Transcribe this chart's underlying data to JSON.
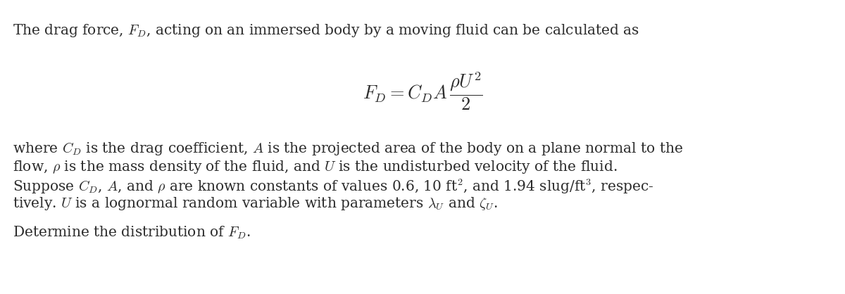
{
  "figsize": [
    12.0,
    4.18
  ],
  "dpi": 100,
  "bg_color": "#ffffff",
  "text_color": "#2b2b2b",
  "font_size_body": 14.5,
  "font_size_formula": 19,
  "line1": "The drag force, $F_D$, acting on an immersed body by a moving fluid can be calculated as",
  "formula": "$F_D = C_D A\\,\\dfrac{\\rho U^2}{2}$",
  "line3": "where $C_D$ is the drag coefficient, $A$ is the projected area of the body on a plane normal to the",
  "line4": "flow, $\\rho$ is the mass density of the fluid, and $U$ is the undisturbed velocity of the fluid.",
  "line5": "Suppose $C_D$, $A$, and $\\rho$ are known constants of values 0.6, 10 ft$^2$, and 1.94 slug/ft$^3$, respec-",
  "line6": "tively. $U$ is a lognormal random variable with parameters $\\lambda_U$ and $\\zeta_U$.",
  "line7": "Determine the distribution of $F_D$."
}
